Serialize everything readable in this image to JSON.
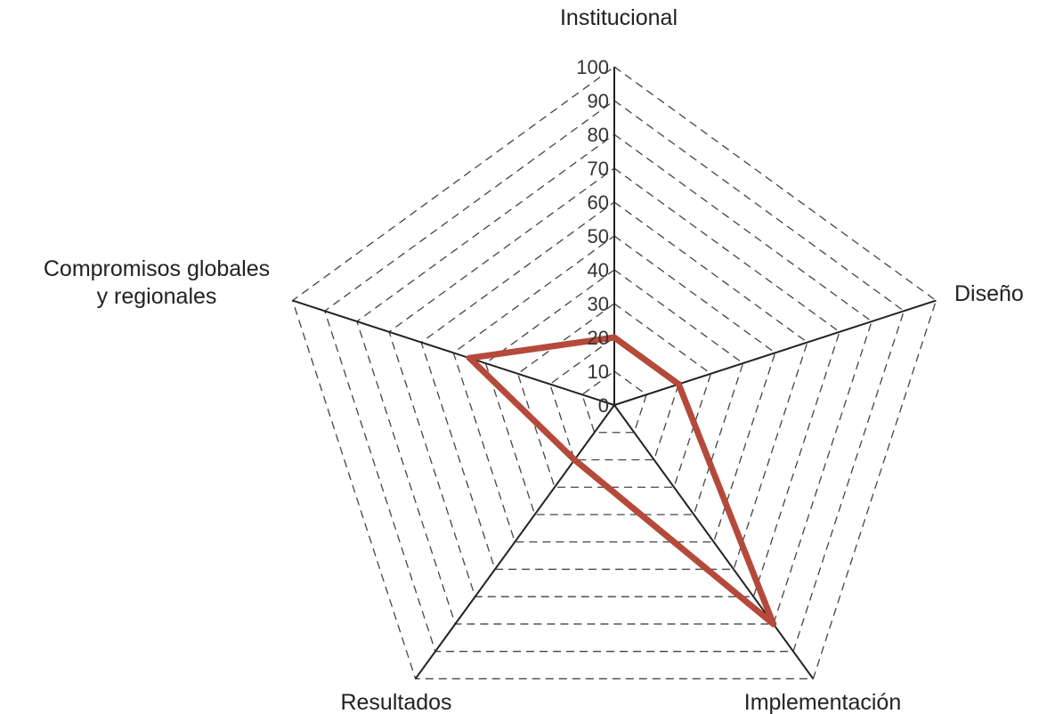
{
  "chart_data": {
    "type": "radar",
    "title": "",
    "axes": [
      "Institucional",
      "Diseño",
      "Implementación",
      "Resultados",
      "Compromisos globales\ny regionales"
    ],
    "range": [
      0,
      100
    ],
    "ticks": [
      "0",
      "10",
      "20",
      "30",
      "40",
      "50",
      "60",
      "70",
      "80",
      "90",
      "100"
    ],
    "grid": true,
    "grid_style": "dashed",
    "legend": "none",
    "series": [
      {
        "values": [
          20,
          20,
          80,
          20,
          45
        ],
        "color": "#b5493a"
      }
    ]
  }
}
